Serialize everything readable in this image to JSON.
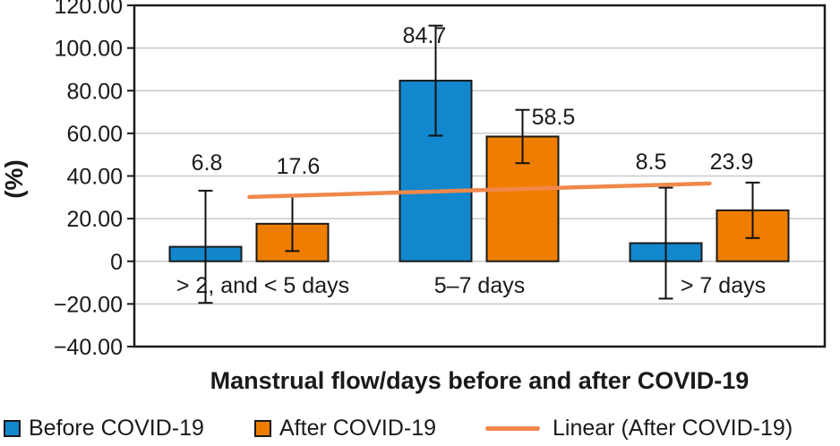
{
  "chart_data": {
    "type": "bar",
    "title": "",
    "xlabel": "Manstrual flow/days before and after COVID-19",
    "ylabel": "(%)",
    "categories": [
      "> 2, and < 5 days",
      "5–7 days",
      "> 7 days"
    ],
    "series": [
      {
        "name": "Before COVID-19",
        "color": "#1287CE",
        "values": [
          6.8,
          84.7,
          8.5
        ],
        "error_plus": [
          26.3,
          25.8,
          26.0
        ],
        "error_minus": [
          26.3,
          25.8,
          26.0
        ]
      },
      {
        "name": "After COVID-19",
        "color": "#EE7D00",
        "values": [
          17.6,
          58.5,
          23.9
        ],
        "error_plus": [
          12.8,
          12.5,
          13.0
        ],
        "error_minus": [
          12.8,
          12.5,
          13.0
        ]
      }
    ],
    "bar_data_labels": [
      "6.8",
      "17.6",
      "84.7",
      "58.5",
      "8.5",
      "23.9"
    ],
    "trendline": {
      "label": "Linear (After COVID-19)",
      "color": "#F0884A",
      "start_value": 30.2,
      "end_value": 36.5
    },
    "ylim": [
      -40,
      120
    ],
    "ytick_values": [
      120,
      100,
      80,
      60,
      40,
      20,
      0,
      -20,
      -40
    ],
    "ytick_labels": [
      "120.00",
      "100.00",
      "80.00",
      "60.00",
      "40.00",
      "20.00",
      "0",
      "−20.00",
      "−40.00"
    ],
    "grid": true,
    "legend_position": "bottom"
  },
  "legend": {
    "items": [
      {
        "label": "Before COVID-19",
        "marker": "square",
        "color": "#1287CE"
      },
      {
        "label": "After COVID-19",
        "marker": "square",
        "color": "#EE7D00"
      },
      {
        "label": "Linear (After COVID-19)",
        "marker": "line",
        "color": "#F0884A"
      }
    ]
  }
}
